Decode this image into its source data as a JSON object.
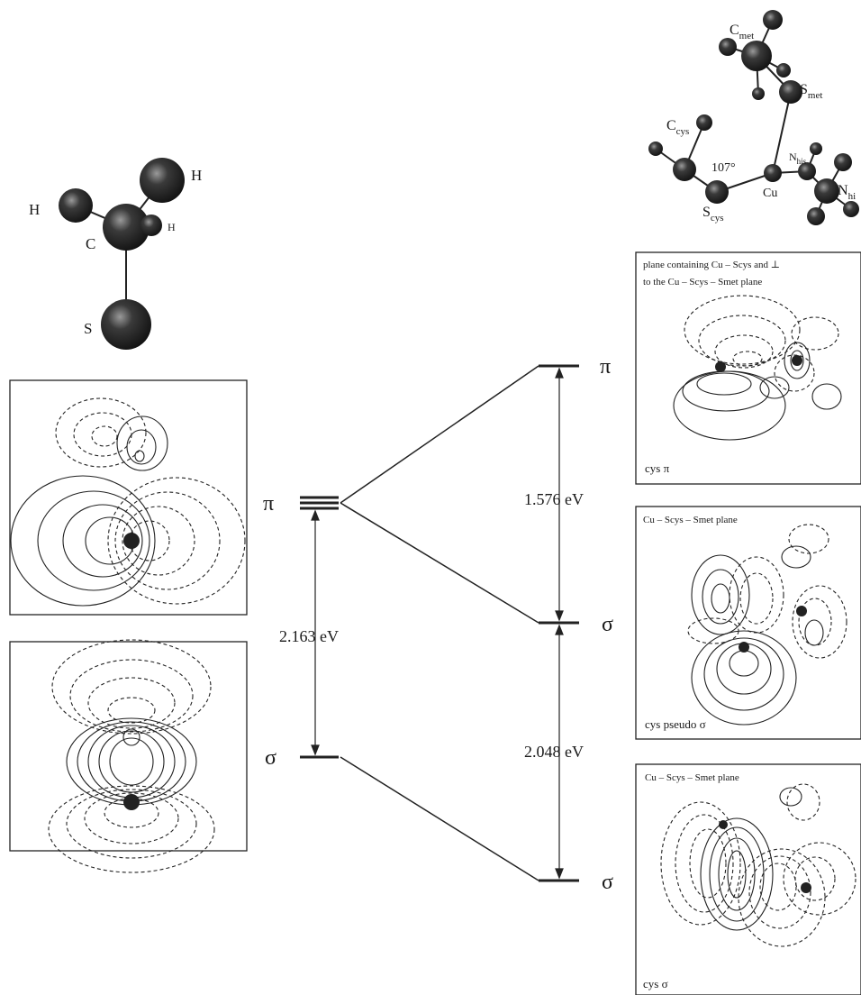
{
  "methanethiolate": {
    "atoms": {
      "h_left": "H",
      "h_top": "H",
      "h_small": "H",
      "carbon": "C",
      "sulfur": "S"
    }
  },
  "copper_site": {
    "atoms": {
      "c_met_base": "C",
      "c_met_sub": "met",
      "s_met_base": "S",
      "s_met_sub": "met",
      "c_cys_base": "C",
      "c_cys_sub": "cys",
      "s_cys_base": "S",
      "s_cys_sub": "cys",
      "cu": "Cu",
      "n_his_small_base": "N",
      "n_his_small_sub": "his",
      "n_his_base": "N",
      "n_his_sub": "hi"
    },
    "angle": "107°"
  },
  "energy_diagram": {
    "left": {
      "pi": "π",
      "sigma": "σ",
      "gap": "2.163 eV"
    },
    "right": {
      "pi": "π",
      "sigma_upper": "σ",
      "sigma_lower": "σ",
      "gap_upper": "1.576 eV",
      "gap_lower": "2.048 eV"
    }
  },
  "panels": {
    "right_top_caption_1": "plane containing Cu – Scys and ⊥",
    "right_top_caption_2": "to the Cu – Scys – Smet plane",
    "right_top_label": "cys π",
    "right_mid_caption": "Cu – Scys – Smet plane",
    "right_mid_label": "cys pseudo σ",
    "right_bot_caption": "Cu – Scys – Smet plane",
    "right_bot_label": "cys σ"
  },
  "colors": {
    "ink": "#1a1a1a",
    "atom": "#333333"
  }
}
